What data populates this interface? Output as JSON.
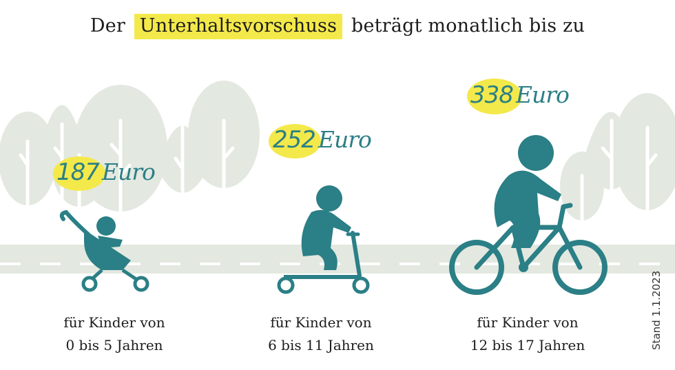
{
  "title": {
    "prefix": "Der",
    "highlight": "Unterhaltsvorschuss",
    "suffix": "beträgt monatlich bis zu"
  },
  "groups": [
    {
      "amount": "187",
      "currency": "Euro",
      "caption_line1": "für Kinder von",
      "caption_line2": "0 bis 5 Jahren",
      "vehicle": "stroller-icon"
    },
    {
      "amount": "252",
      "currency": "Euro",
      "caption_line1": "für Kinder von",
      "caption_line2": "6 bis 11 Jahren",
      "vehicle": "scooter-icon"
    },
    {
      "amount": "338",
      "currency": "Euro",
      "caption_line1": "für Kinder von",
      "caption_line2": "12 bis 17 Jahren",
      "vehicle": "bicycle-icon"
    }
  ],
  "stand": "Stand 1.1.2023",
  "colors": {
    "highlight": "#f4e94a",
    "figure": "#2b7f86",
    "tree": "#e3e8e0",
    "road": "#e3e8e0"
  }
}
